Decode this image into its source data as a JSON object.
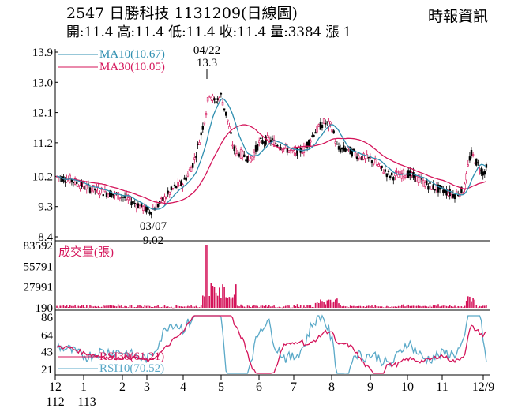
{
  "header": {
    "title": "2547  日勝科技 1131209(日線圖)",
    "source": "時報資訊",
    "quote": "開:11.4 高:11.4 低:11.4 收:11.4 量:3384 漲 1"
  },
  "colors": {
    "ma10": "#2f8fb0",
    "ma30": "#d4145a",
    "up_candle": "#d4145a",
    "down_candle": "#000000",
    "volume": "#d4145a",
    "rsi30": "#d4145a",
    "rsi10": "#5aa9c8"
  },
  "chart_data": [
    {
      "type": "candlestick",
      "name": "price",
      "y_ticks": [
        "13.9",
        "13.0",
        "12.1",
        "11.2",
        "10.2",
        "9.3",
        "8.4"
      ],
      "ylim": [
        8.4,
        13.9
      ],
      "legend": [
        {
          "label": "MA10(10.67)",
          "color": "#2f8fb0"
        },
        {
          "label": "MA30(10.05)",
          "color": "#d4145a"
        }
      ],
      "annotations": [
        {
          "date_label": "04/22",
          "value_label": "13.3",
          "position": "above"
        },
        {
          "date_label": "03/07",
          "value_label": "9.02",
          "position": "below"
        }
      ],
      "ohlc_anchor_points": [
        {
          "period": "12/112 start",
          "close": 10.2
        },
        {
          "period": "1",
          "close": 9.9
        },
        {
          "period": "2",
          "close": 9.6
        },
        {
          "period": "03/07",
          "low": 9.02,
          "close": 9.2
        },
        {
          "period": "4",
          "close": 9.9
        },
        {
          "period": "04/22",
          "high": 13.3,
          "close": 12.6
        },
        {
          "period": "5",
          "close": 11.0
        },
        {
          "period": "6",
          "close": 11.2
        },
        {
          "period": "7",
          "close": 11.0
        },
        {
          "period": "8",
          "close": 11.8
        },
        {
          "period": "9",
          "close": 10.9
        },
        {
          "period": "10",
          "close": 10.3
        },
        {
          "period": "11",
          "close": 9.8
        },
        {
          "period": "12/9",
          "open": 11.4,
          "high": 11.4,
          "low": 11.4,
          "close": 11.4
        }
      ]
    },
    {
      "type": "bar",
      "name": "volume",
      "y_ticks": [
        "83592",
        "55791",
        "27991",
        "190"
      ],
      "ylim": [
        190,
        83592
      ],
      "legend": [
        {
          "label": "成交量(張)",
          "color": "#d4145a"
        }
      ],
      "notable_values": [
        {
          "period": "04/22",
          "value": 83592
        },
        {
          "period": "12/9",
          "value": 3384
        }
      ]
    },
    {
      "type": "line",
      "name": "rsi",
      "y_ticks": [
        "86",
        "64",
        "43",
        "21"
      ],
      "ylim": [
        14,
        90
      ],
      "legend": [
        {
          "label": "RSI30(61.21)",
          "color": "#d4145a"
        },
        {
          "label": "RSI10(70.52)",
          "color": "#5aa9c8"
        }
      ]
    }
  ],
  "x_axis": {
    "months": [
      "12",
      "1",
      "2",
      "3",
      "4",
      "5",
      "6",
      "7",
      "8",
      "9",
      "10",
      "11",
      "12/9"
    ],
    "years": [
      "112",
      "113"
    ]
  }
}
